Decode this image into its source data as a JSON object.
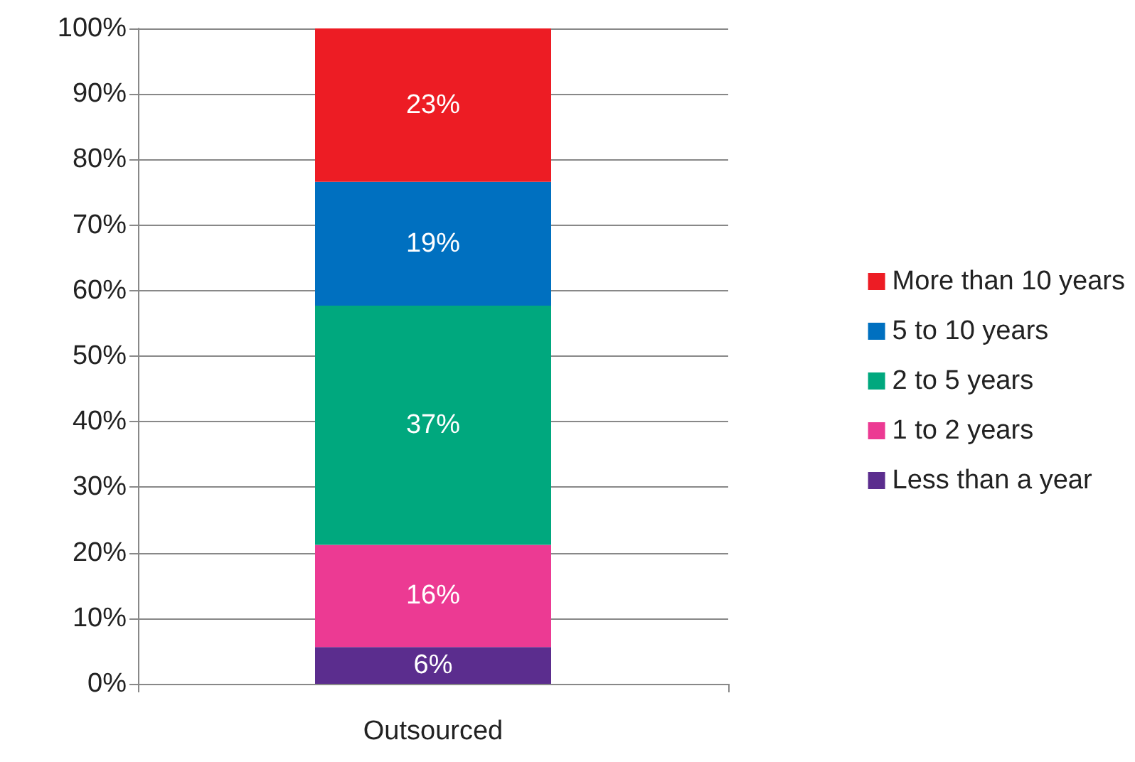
{
  "chart_data": {
    "type": "bar",
    "stacked": true,
    "categories": [
      "Outsourced"
    ],
    "series": [
      {
        "name": "Less than a year",
        "color": "#5b2d8e",
        "values": [
          5.6
        ],
        "value_labels": [
          "6%"
        ]
      },
      {
        "name": "1 to 2 years",
        "color": "#ec3a93",
        "values": [
          15.6
        ],
        "value_labels": [
          "16%"
        ]
      },
      {
        "name": "2 to 5 years",
        "color": "#00a87e",
        "values": [
          36.5
        ],
        "value_labels": [
          "37%"
        ]
      },
      {
        "name": "5 to 10 years",
        "color": "#0070c0",
        "values": [
          18.9
        ],
        "value_labels": [
          "19%"
        ]
      },
      {
        "name": "More than 10 years",
        "color": "#ed1c24",
        "values": [
          23.4
        ],
        "value_labels": [
          "23%"
        ]
      }
    ],
    "ylim": [
      0,
      100
    ],
    "yticks": [
      {
        "value": 0,
        "label": "0%"
      },
      {
        "value": 10,
        "label": "10%"
      },
      {
        "value": 20,
        "label": "20%"
      },
      {
        "value": 30,
        "label": "30%"
      },
      {
        "value": 40,
        "label": "40%"
      },
      {
        "value": 50,
        "label": "50%"
      },
      {
        "value": 60,
        "label": "60%"
      },
      {
        "value": 70,
        "label": "70%"
      },
      {
        "value": 80,
        "label": "80%"
      },
      {
        "value": 90,
        "label": "90%"
      },
      {
        "value": 100,
        "label": "100%"
      }
    ],
    "grid": "y",
    "legend": "right"
  }
}
